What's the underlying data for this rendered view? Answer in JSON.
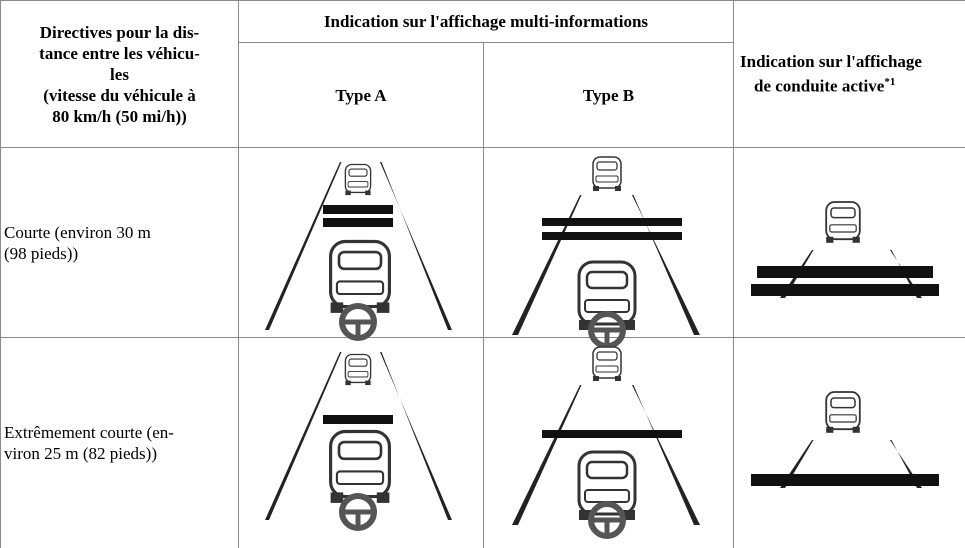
{
  "table": {
    "header": {
      "distance_lines": [
        "Directives pour la dis-",
        "tance entre les véhicu-",
        "les",
        "(vitesse du véhicule à",
        "80 km/h (50 mi/h))"
      ],
      "group": "Indication sur l'affichage multi-informations",
      "type_a": "Type A",
      "type_b": "Type B",
      "active_display_lines": [
        "Indication sur l'affichage",
        "de conduite active"
      ],
      "footnote_mark": "*1"
    },
    "rows": [
      {
        "distance_lines": [
          "Courte (environ 30 m",
          "(98 pieds))"
        ]
      },
      {
        "distance_lines": [
          "Extrêmement courte (en-",
          "viron 25 m (82 pieds))"
        ]
      }
    ]
  }
}
